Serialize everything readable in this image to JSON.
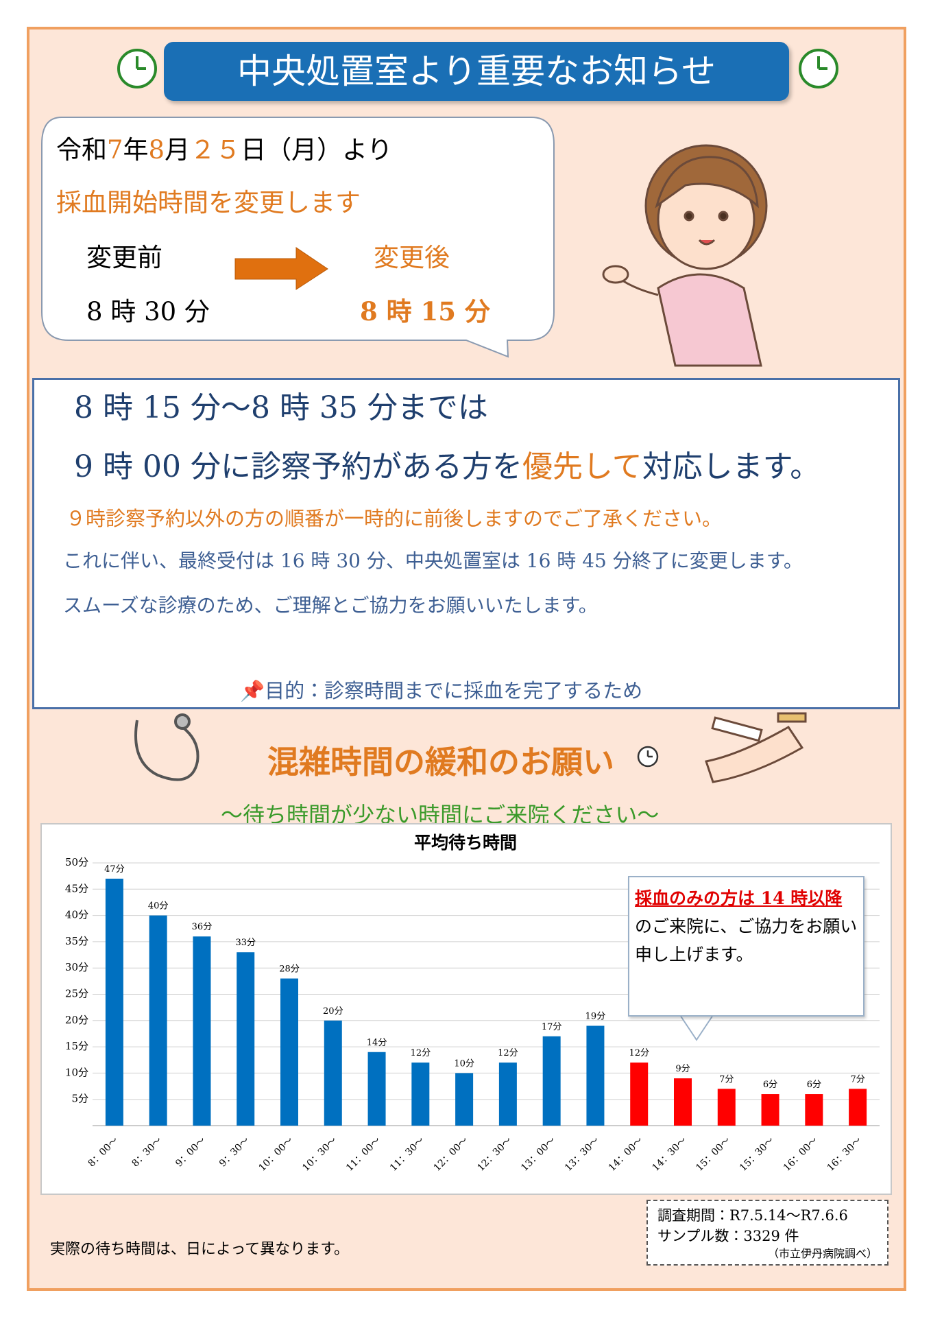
{
  "header": {
    "title": "中央処置室より重要なお知らせ"
  },
  "bubble": {
    "date": [
      "令和",
      "7",
      "年",
      "8",
      "月",
      "２５",
      "日（月）より"
    ],
    "headline": "採血開始時間を変更します",
    "before_label": "変更前",
    "before_time": "8 時 30 分",
    "after_label": "変更後",
    "after_time": "8 時 15 分"
  },
  "notice": {
    "line1": "8 時 15 分～8 時 35 分までは",
    "line2": [
      "9 時 00 分に診察予約がある方を",
      "優先して",
      "対応します。"
    ],
    "note": "９時診察予約以外の方の順番が一時的に前後しますのでご了承ください。",
    "line3": "これに伴い、最終受付は 16 時 30 分、中央処置室は 16 時 45 分終了に変更します。",
    "line4": "スムーズな診療のため、ご理解とご協力をお願いいたします。",
    "purpose": "目的：診察時間までに採血を完了するため"
  },
  "section": {
    "title": "混雑時間の緩和のお願い",
    "subtitle": "～待ち時間が少ない時間にご来院ください～"
  },
  "chart_data": {
    "type": "bar",
    "title": "平均待ち時間",
    "categories": [
      "8：00～",
      "8：30～",
      "9：00～",
      "9：30～",
      "10：00～",
      "10：30～",
      "11：00～",
      "11：30～",
      "12：00～",
      "12：30～",
      "13：00～",
      "13：30～",
      "14：00～",
      "14：30～",
      "15：00～",
      "15：30～",
      "16：00～",
      "16：30～"
    ],
    "values": [
      47,
      40,
      36,
      33,
      28,
      20,
      14,
      12,
      10,
      12,
      17,
      19,
      12,
      9,
      7,
      6,
      6,
      7
    ],
    "value_labels": [
      "47分",
      "40分",
      "36分",
      "33分",
      "28分",
      "20分",
      "14分",
      "12分",
      "10分",
      "12分",
      "17分",
      "19分",
      "12分",
      "9分",
      "7分",
      "6分",
      "6分",
      "7分"
    ],
    "colors": [
      "#0070c0",
      "#0070c0",
      "#0070c0",
      "#0070c0",
      "#0070c0",
      "#0070c0",
      "#0070c0",
      "#0070c0",
      "#0070c0",
      "#0070c0",
      "#0070c0",
      "#0070c0",
      "#ff0000",
      "#ff0000",
      "#ff0000",
      "#ff0000",
      "#ff0000",
      "#ff0000"
    ],
    "ylim": [
      0,
      50
    ],
    "yticks": [
      {
        "value": 5,
        "label": "5分"
      },
      {
        "value": 10,
        "label": "10分"
      },
      {
        "value": 15,
        "label": "15分"
      },
      {
        "value": 20,
        "label": "20分"
      },
      {
        "value": 25,
        "label": "25分"
      },
      {
        "value": 30,
        "label": "30分"
      },
      {
        "value": 35,
        "label": "35分"
      },
      {
        "value": 40,
        "label": "40分"
      },
      {
        "value": 45,
        "label": "45分"
      },
      {
        "value": 50,
        "label": "50分"
      }
    ],
    "grid": true,
    "annotation": {
      "highlight": "採血のみの方は 14 時以降",
      "text": "のご来院に、ご協力をお願い申し上げます。"
    }
  },
  "footer": {
    "note": "実際の待ち時間は、日によって異なります。",
    "survey": "調査期間：R7.5.14～R7.6.6",
    "sample": "サンプル数：3329 件",
    "source": "（市立伊丹病院調べ）"
  }
}
